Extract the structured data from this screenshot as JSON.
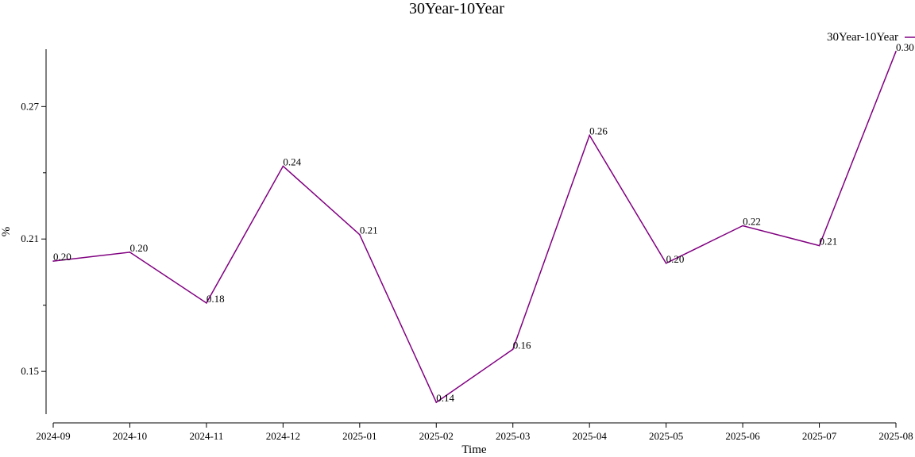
{
  "chart_data": {
    "type": "line",
    "title": "30Year-10Year",
    "xlabel": "Time",
    "ylabel": "%",
    "categories": [
      "2024-09",
      "2024-10",
      "2024-11",
      "2024-12",
      "2025-01",
      "2025-02",
      "2025-03",
      "2025-04",
      "2025-05",
      "2025-06",
      "2025-07",
      "2025-08"
    ],
    "series": [
      {
        "name": "30Year-10Year",
        "color": "#800080",
        "values": [
          0.2,
          0.204,
          0.181,
          0.243,
          0.212,
          0.136,
          0.16,
          0.257,
          0.199,
          0.216,
          0.207,
          0.295
        ],
        "labels": [
          "0.20",
          "0.20",
          "0.18",
          "0.24",
          "0.21",
          "0.14",
          "0.16",
          "0.26",
          "0.20",
          "0.22",
          "0.21",
          "0.30"
        ]
      }
    ],
    "yticks": [
      0.15,
      0.21,
      0.27
    ],
    "ytick_labels": [
      "0.15",
      "0.21",
      "0.27"
    ],
    "ylim": [
      0.131,
      0.296
    ],
    "grid": false,
    "legend": "top-right"
  }
}
